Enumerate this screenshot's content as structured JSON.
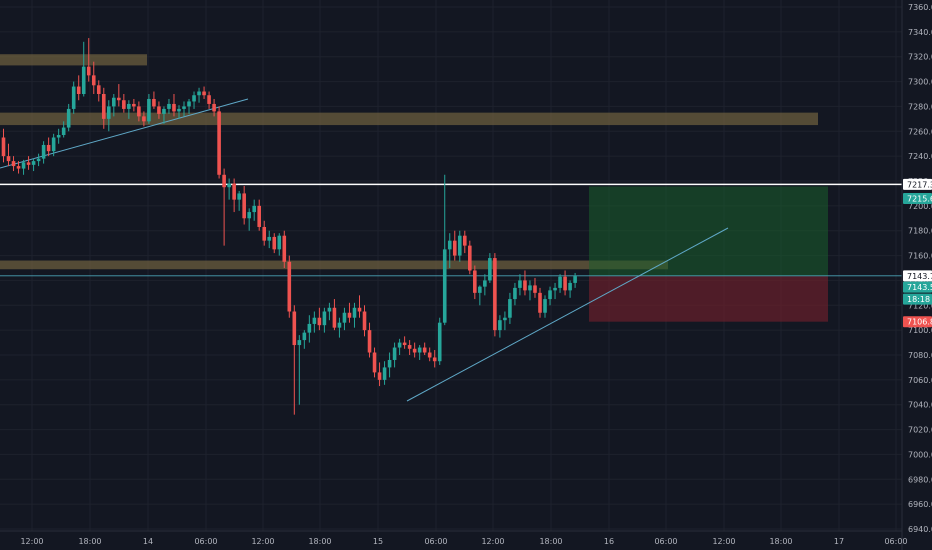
{
  "chart_data": {
    "type": "candlestick",
    "y_axis": {
      "ticks": [
        "7360.0",
        "7340.0",
        "7320.0",
        "7300.0",
        "7280.0",
        "7260.0",
        "7240.0",
        "7220.0",
        "7200.0",
        "7180.0",
        "7160.0",
        "7140.0",
        "7120.0",
        "7100.0",
        "7080.0",
        "7060.0",
        "7040.0",
        "7020.0",
        "7000.0",
        "6980.0",
        "6960.0",
        "6940.0"
      ],
      "ylim": [
        6940,
        7360
      ]
    },
    "x_axis": {
      "ticks": [
        "12:00",
        "18:00",
        "14",
        "06:00",
        "12:00",
        "18:00",
        "15",
        "06:00",
        "12:00",
        "18:00",
        "16",
        "06:00",
        "12:00",
        "18:00",
        "17",
        "06:00"
      ]
    },
    "price_labels": [
      {
        "value": "7217.3",
        "kind": "line",
        "color": "#ffffff"
      },
      {
        "value": "7215.6",
        "kind": "target",
        "color": "#26a69a"
      },
      {
        "value": "7143.7",
        "kind": "line",
        "color": "#ffffff"
      },
      {
        "value": "7143.5",
        "kind": "last",
        "color": "#26a69a"
      },
      {
        "value": "18:18",
        "kind": "countdown",
        "color": "#26a69a"
      },
      {
        "value": "7106.8",
        "kind": "stop",
        "color": "#ef5350"
      }
    ],
    "zones": [
      {
        "name": "resistance-zone-top",
        "y_from": 7313,
        "y_to": 7322
      },
      {
        "name": "resistance-zone-mid",
        "y_from": 7265,
        "y_to": 7275
      },
      {
        "name": "support-zone",
        "y_from": 7149,
        "y_to": 7156
      }
    ],
    "horizontal_lines": [
      7217.3,
      7143.7
    ],
    "position": {
      "entry": 7143.5,
      "target": 7215.6,
      "stop": 7106.8
    },
    "colors": {
      "up": "#26a69a",
      "down": "#ef5350",
      "background": "#131722",
      "zone": "#6b5d3e",
      "profit": "#1a5f2b",
      "loss": "#6a1f2b"
    },
    "candles": [
      [
        7255,
        7262,
        7235,
        7240
      ],
      [
        7240,
        7250,
        7232,
        7236
      ],
      [
        7236,
        7240,
        7228,
        7232
      ],
      [
        7232,
        7236,
        7226,
        7230
      ],
      [
        7230,
        7237,
        7225,
        7235
      ],
      [
        7235,
        7240,
        7229,
        7233
      ],
      [
        7233,
        7238,
        7228,
        7236
      ],
      [
        7236,
        7242,
        7232,
        7238
      ],
      [
        7238,
        7252,
        7234,
        7249
      ],
      [
        7249,
        7255,
        7240,
        7244
      ],
      [
        7244,
        7258,
        7240,
        7255
      ],
      [
        7255,
        7262,
        7250,
        7257
      ],
      [
        7257,
        7268,
        7255,
        7263
      ],
      [
        7263,
        7282,
        7260,
        7278
      ],
      [
        7278,
        7300,
        7274,
        7296
      ],
      [
        7296,
        7305,
        7285,
        7290
      ],
      [
        7290,
        7332,
        7288,
        7312
      ],
      [
        7312,
        7335,
        7300,
        7305
      ],
      [
        7305,
        7316,
        7290,
        7297
      ],
      [
        7297,
        7301,
        7284,
        7290
      ],
      [
        7290,
        7295,
        7262,
        7270
      ],
      [
        7270,
        7285,
        7260,
        7280
      ],
      [
        7280,
        7290,
        7272,
        7287
      ],
      [
        7287,
        7298,
        7280,
        7285
      ],
      [
        7285,
        7290,
        7275,
        7278
      ],
      [
        7278,
        7285,
        7270,
        7282
      ],
      [
        7282,
        7286,
        7276,
        7280
      ],
      [
        7280,
        7284,
        7268,
        7272
      ],
      [
        7272,
        7276,
        7264,
        7268
      ],
      [
        7268,
        7290,
        7266,
        7286
      ],
      [
        7286,
        7292,
        7278,
        7280
      ],
      [
        7280,
        7284,
        7270,
        7274
      ],
      [
        7274,
        7280,
        7266,
        7278
      ],
      [
        7278,
        7286,
        7274,
        7282
      ],
      [
        7282,
        7290,
        7272,
        7276
      ],
      [
        7276,
        7281,
        7270,
        7278
      ],
      [
        7278,
        7284,
        7272,
        7280
      ],
      [
        7280,
        7286,
        7274,
        7284
      ],
      [
        7284,
        7292,
        7278,
        7289
      ],
      [
        7289,
        7295,
        7283,
        7292
      ],
      [
        7292,
        7296,
        7286,
        7289
      ],
      [
        7289,
        7292,
        7278,
        7282
      ],
      [
        7282,
        7286,
        7272,
        7276
      ],
      [
        7276,
        7280,
        7222,
        7225
      ],
      [
        7225,
        7230,
        7168,
        7215
      ],
      [
        7215,
        7222,
        7205,
        7218
      ],
      [
        7218,
        7222,
        7195,
        7205
      ],
      [
        7205,
        7212,
        7196,
        7210
      ],
      [
        7210,
        7216,
        7185,
        7190
      ],
      [
        7190,
        7198,
        7180,
        7195
      ],
      [
        7195,
        7205,
        7188,
        7200
      ],
      [
        7200,
        7205,
        7180,
        7183
      ],
      [
        7183,
        7188,
        7168,
        7172
      ],
      [
        7172,
        7180,
        7166,
        7175
      ],
      [
        7175,
        7178,
        7162,
        7165
      ],
      [
        7165,
        7178,
        7160,
        7176
      ],
      [
        7176,
        7180,
        7150,
        7155
      ],
      [
        7155,
        7160,
        7110,
        7115
      ],
      [
        7115,
        7120,
        7032,
        7088
      ],
      [
        7088,
        7096,
        7040,
        7092
      ],
      [
        7092,
        7100,
        7085,
        7098
      ],
      [
        7098,
        7112,
        7090,
        7105
      ],
      [
        7105,
        7115,
        7098,
        7110
      ],
      [
        7110,
        7118,
        7100,
        7104
      ],
      [
        7104,
        7118,
        7098,
        7115
      ],
      [
        7115,
        7122,
        7108,
        7118
      ],
      [
        7118,
        7125,
        7100,
        7102
      ],
      [
        7102,
        7110,
        7094,
        7106
      ],
      [
        7106,
        7118,
        7100,
        7114
      ],
      [
        7114,
        7122,
        7106,
        7110
      ],
      [
        7110,
        7122,
        7102,
        7118
      ],
      [
        7118,
        7128,
        7110,
        7115
      ],
      [
        7115,
        7120,
        7095,
        7100
      ],
      [
        7100,
        7106,
        7078,
        7082
      ],
      [
        7082,
        7086,
        7062,
        7066
      ],
      [
        7066,
        7074,
        7055,
        7060
      ],
      [
        7060,
        7075,
        7056,
        7070
      ],
      [
        7070,
        7082,
        7062,
        7076
      ],
      [
        7076,
        7090,
        7070,
        7086
      ],
      [
        7086,
        7093,
        7080,
        7090
      ],
      [
        7090,
        7095,
        7085,
        7088
      ],
      [
        7088,
        7092,
        7080,
        7085
      ],
      [
        7085,
        7090,
        7078,
        7082
      ],
      [
        7082,
        7088,
        7076,
        7086
      ],
      [
        7086,
        7090,
        7080,
        7082
      ],
      [
        7082,
        7086,
        7075,
        7078
      ],
      [
        7078,
        7084,
        7070,
        7075
      ],
      [
        7075,
        7110,
        7072,
        7106
      ],
      [
        7106,
        7225,
        7104,
        7165
      ],
      [
        7165,
        7178,
        7150,
        7172
      ],
      [
        7172,
        7180,
        7156,
        7160
      ],
      [
        7160,
        7180,
        7155,
        7176
      ],
      [
        7176,
        7180,
        7162,
        7168
      ],
      [
        7168,
        7172,
        7145,
        7148
      ],
      [
        7148,
        7152,
        7125,
        7130
      ],
      [
        7130,
        7136,
        7120,
        7135
      ],
      [
        7135,
        7145,
        7128,
        7140
      ],
      [
        7140,
        7162,
        7138,
        7158
      ],
      [
        7158,
        7162,
        7095,
        7100
      ],
      [
        7100,
        7112,
        7094,
        7108
      ],
      [
        7108,
        7115,
        7100,
        7110
      ],
      [
        7110,
        7130,
        7105,
        7125
      ],
      [
        7125,
        7138,
        7120,
        7134
      ],
      [
        7134,
        7145,
        7128,
        7140
      ],
      [
        7140,
        7148,
        7128,
        7132
      ],
      [
        7132,
        7140,
        7124,
        7136
      ],
      [
        7136,
        7142,
        7126,
        7130
      ],
      [
        7130,
        7134,
        7110,
        7114
      ],
      [
        7114,
        7128,
        7110,
        7125
      ],
      [
        7125,
        7135,
        7120,
        7132
      ],
      [
        7132,
        7138,
        7125,
        7134
      ],
      [
        7134,
        7145,
        7130,
        7143
      ],
      [
        7143,
        7148,
        7128,
        7132
      ],
      [
        7132,
        7140,
        7126,
        7138
      ],
      [
        7138,
        7146,
        7134,
        7143.5
      ]
    ]
  }
}
